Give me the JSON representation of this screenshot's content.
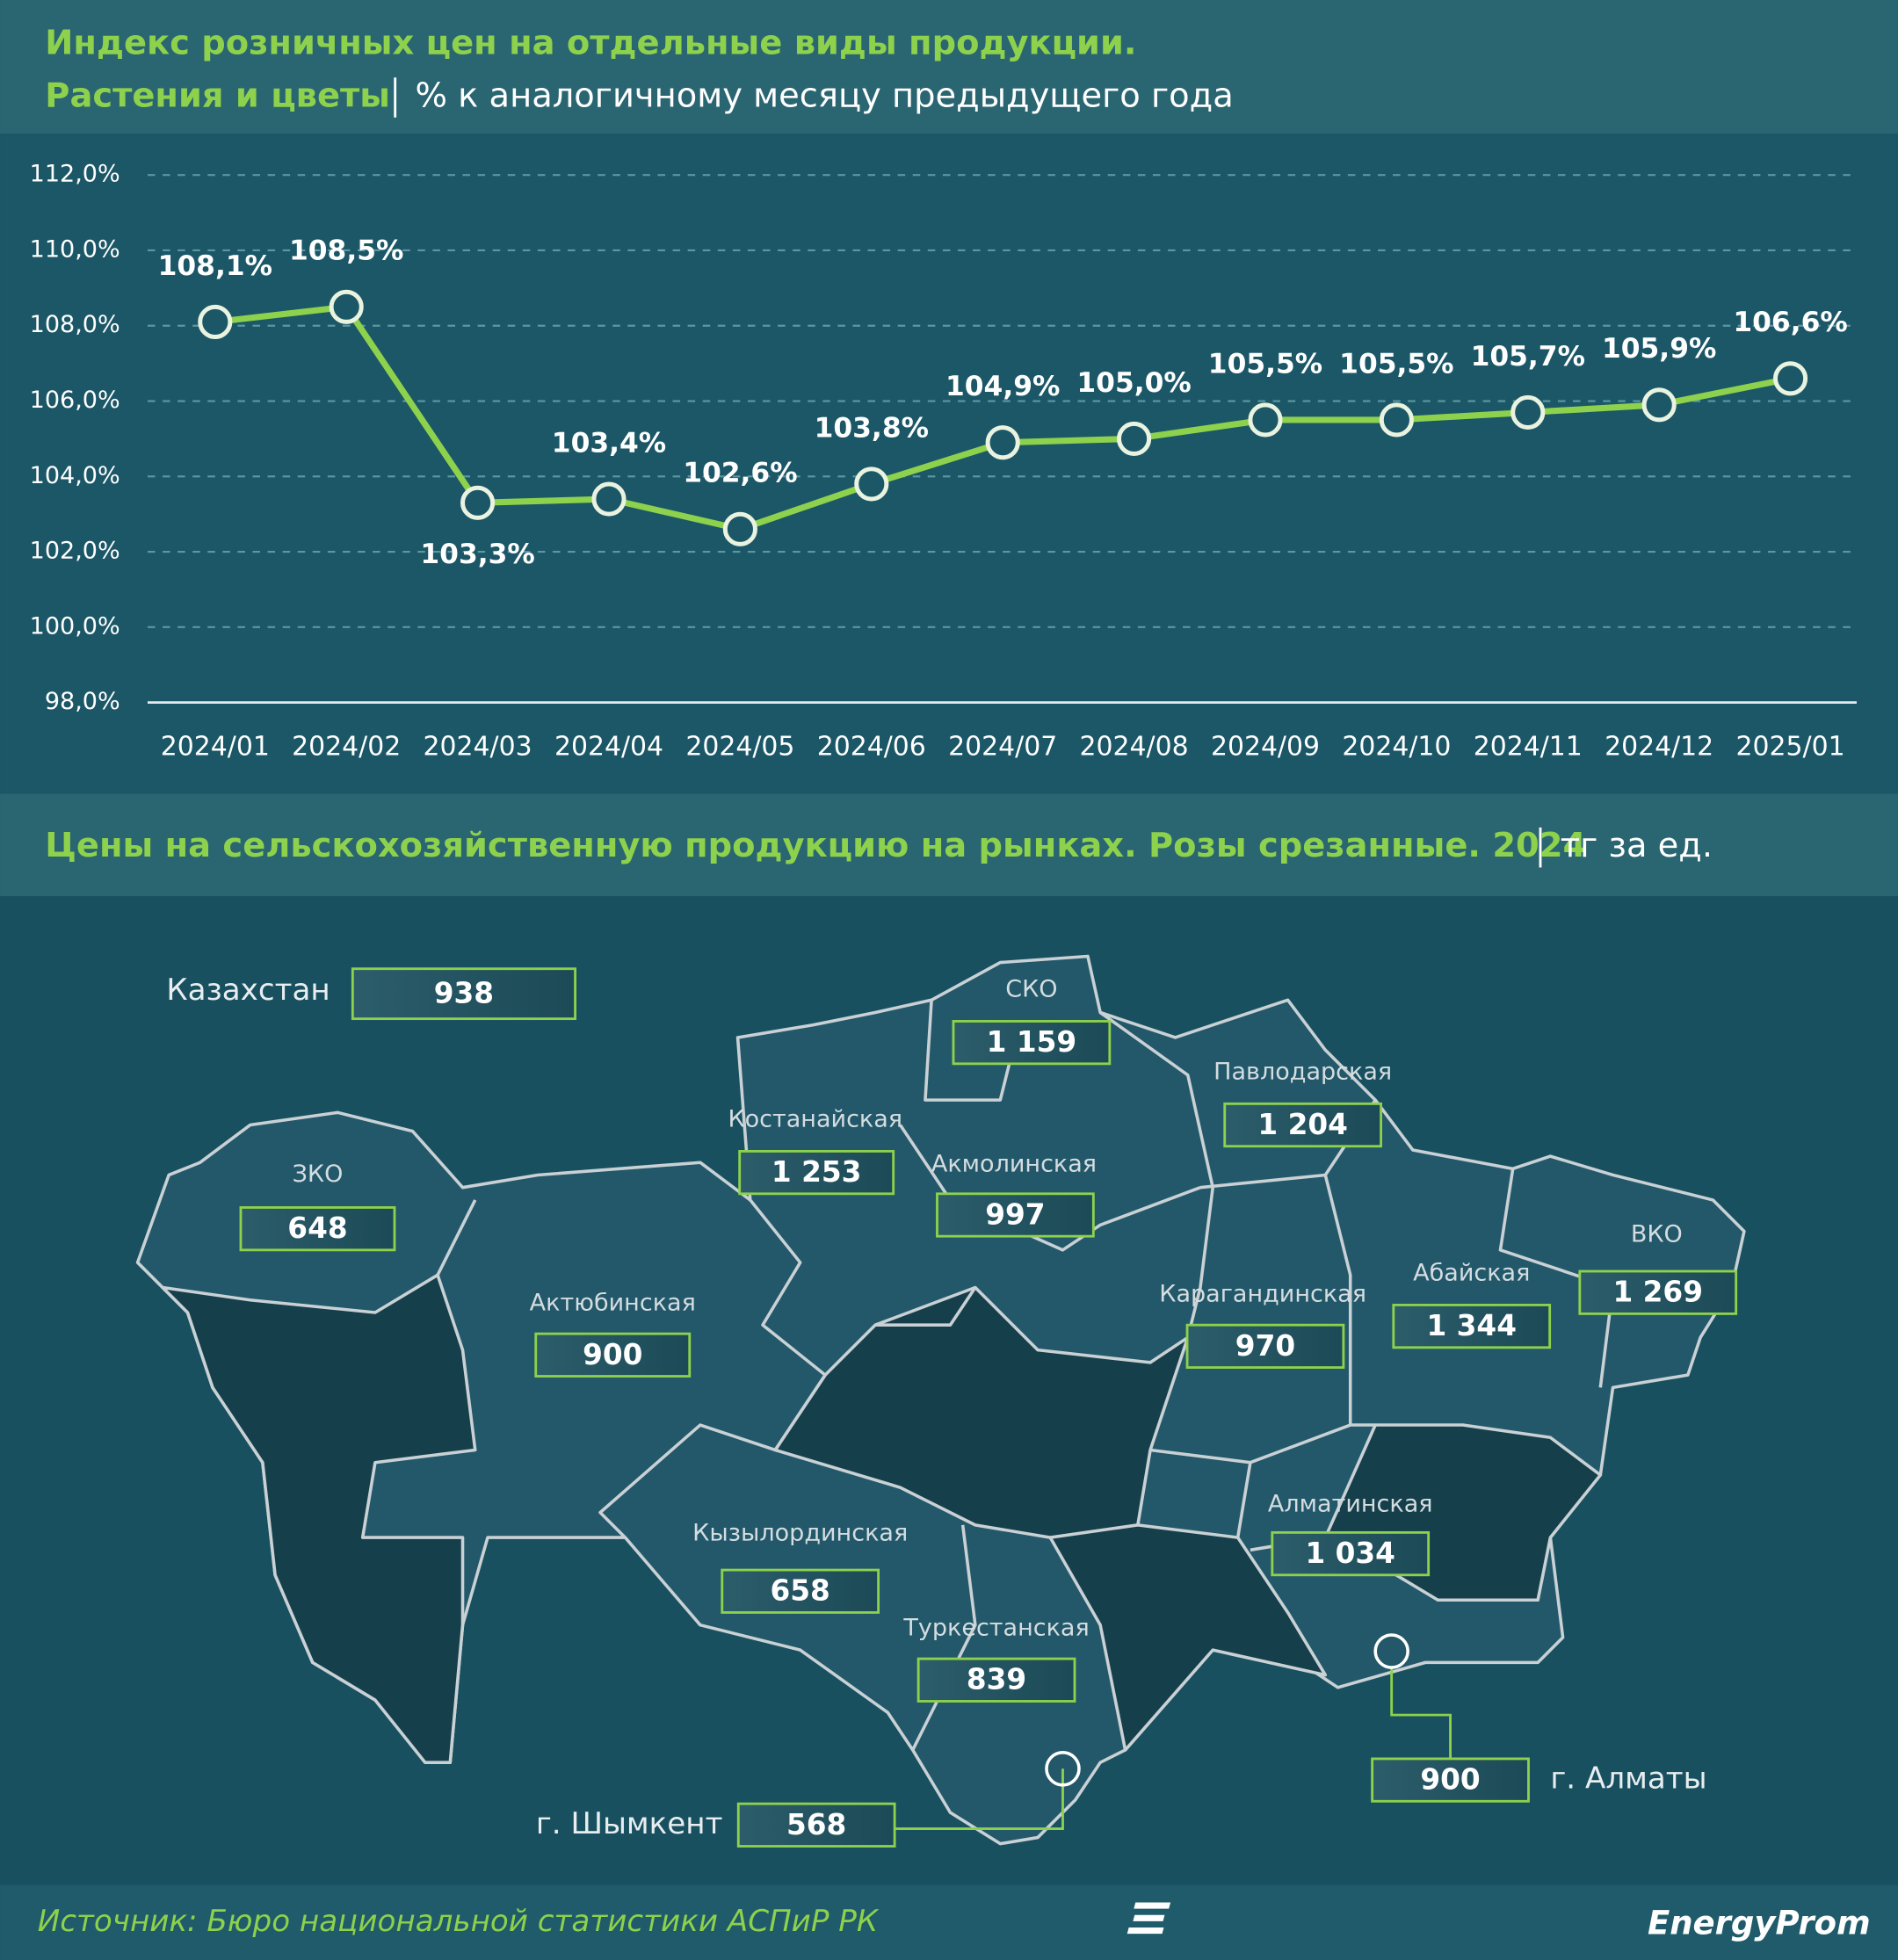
{
  "chart_data": [
    {
      "type": "line",
      "title": "Индекс розничных цен на отдельные виды продукции.",
      "subtitle": "Растения и цветы",
      "unit": "% к аналогичному месяцу предыдущего года",
      "categories": [
        "2024/01",
        "2024/02",
        "2024/03",
        "2024/04",
        "2024/05",
        "2024/06",
        "2024/07",
        "2024/08",
        "2024/09",
        "2024/10",
        "2024/11",
        "2024/12",
        "2025/01"
      ],
      "values": [
        108.1,
        108.5,
        103.3,
        103.4,
        102.6,
        103.8,
        104.9,
        105.0,
        105.5,
        105.5,
        105.7,
        105.9,
        106.6
      ],
      "value_labels": [
        "108,1%",
        "108,5%",
        "103,3%",
        "103,4%",
        "102,6%",
        "103,8%",
        "104,9%",
        "105,0%",
        "105,5%",
        "105,5%",
        "105,7%",
        "105,9%",
        "106,6%"
      ],
      "color": "#8dd14c",
      "ylim": [
        98,
        112
      ],
      "yticks": [
        {
          "value": 98,
          "label": "98,0%"
        },
        {
          "value": 100,
          "label": "100,0%"
        },
        {
          "value": 102,
          "label": "102,0%"
        },
        {
          "value": 104,
          "label": "104,0%"
        },
        {
          "value": 106,
          "label": "106,0%"
        },
        {
          "value": 108,
          "label": "108,0%"
        },
        {
          "value": 110,
          "label": "110,0%"
        },
        {
          "value": 112,
          "label": "112,0%"
        }
      ],
      "grid": true
    },
    {
      "type": "map",
      "title": "Цены на сельскохозяйственную продукцию на рынках. Розы срезанные. 2024",
      "unit": "тг за ед.",
      "categories": [
        "Казахстан",
        "СКО",
        "Павлодарская",
        "Костанайская",
        "Акмолинская",
        "ЗКО",
        "Актюбинская",
        "Карагандинская",
        "Абайская",
        "ВКО",
        "Алматинская",
        "Кызылординская",
        "Туркестанская",
        "г. Шымкент",
        "г. Алматы"
      ],
      "values": [
        938,
        1159,
        1204,
        1253,
        997,
        648,
        900,
        970,
        1344,
        1269,
        1034,
        658,
        839,
        568,
        900
      ],
      "value_labels": [
        "938",
        "1 159",
        "1 204",
        "1 253",
        "997",
        "648",
        "900",
        "970",
        "1 344",
        "1 269",
        "1 034",
        "658",
        "839",
        "568",
        "900"
      ],
      "color": "#8dd14c"
    }
  ],
  "footer": {
    "source": "Источник: Бюро национальной статистики АСПиР РК",
    "logo": "EnergyProm"
  }
}
